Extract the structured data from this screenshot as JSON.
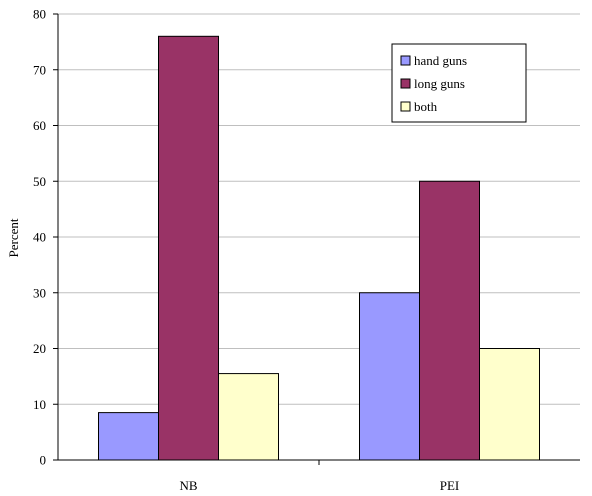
{
  "chart_data": {
    "type": "bar",
    "categories": [
      "NB",
      "PEI"
    ],
    "series": [
      {
        "name": "hand guns",
        "values": [
          8.5,
          30
        ],
        "color": "#9999ff"
      },
      {
        "name": "long guns",
        "values": [
          76,
          50
        ],
        "color": "#993366"
      },
      {
        "name": "both",
        "values": [
          15.5,
          20
        ],
        "color": "#ffffcc"
      }
    ],
    "ylabel": "Percent",
    "ylim": [
      0,
      80
    ],
    "yticks": [
      0,
      10,
      20,
      30,
      40,
      50,
      60,
      70,
      80
    ],
    "grid": true,
    "legend_position": "top-right"
  }
}
